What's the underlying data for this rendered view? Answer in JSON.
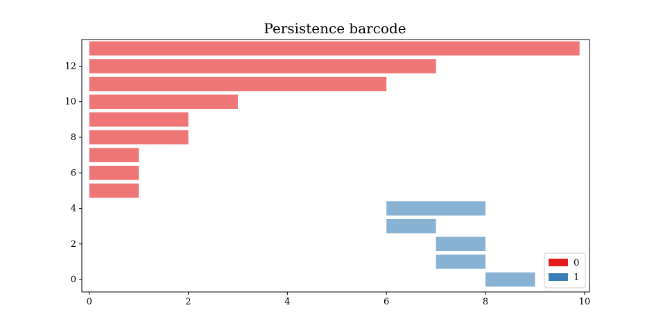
{
  "chart_data": {
    "type": "barcode",
    "title": "Persistence barcode",
    "xlabel": "",
    "ylabel": "",
    "xlim": [
      -0.15,
      10.1
    ],
    "ylim": [
      -0.7,
      13.5
    ],
    "xticks": [
      0,
      2,
      4,
      6,
      8,
      10
    ],
    "yticks": [
      0,
      2,
      4,
      6,
      8,
      10,
      12
    ],
    "grid": false,
    "legend": {
      "position": "bottom-right",
      "entries": [
        {
          "label": "0",
          "color": "#e41a1c"
        },
        {
          "label": "1",
          "color": "#377eb8"
        }
      ]
    },
    "series": [
      {
        "name": "0",
        "color": "#e41a1c",
        "bars": [
          {
            "y": 5,
            "start": 0,
            "end": 1
          },
          {
            "y": 6,
            "start": 0,
            "end": 1
          },
          {
            "y": 7,
            "start": 0,
            "end": 1
          },
          {
            "y": 8,
            "start": 0,
            "end": 2
          },
          {
            "y": 9,
            "start": 0,
            "end": 2
          },
          {
            "y": 10,
            "start": 0,
            "end": 3
          },
          {
            "y": 11,
            "start": 0,
            "end": 6
          },
          {
            "y": 12,
            "start": 0,
            "end": 7
          },
          {
            "y": 13,
            "start": 0,
            "end": 9.9
          }
        ]
      },
      {
        "name": "1",
        "color": "#377eb8",
        "bars": [
          {
            "y": 0,
            "start": 8,
            "end": 9
          },
          {
            "y": 1,
            "start": 7,
            "end": 8
          },
          {
            "y": 2,
            "start": 7,
            "end": 8
          },
          {
            "y": 3,
            "start": 6,
            "end": 7
          },
          {
            "y": 4,
            "start": 6,
            "end": 8
          }
        ]
      }
    ]
  }
}
